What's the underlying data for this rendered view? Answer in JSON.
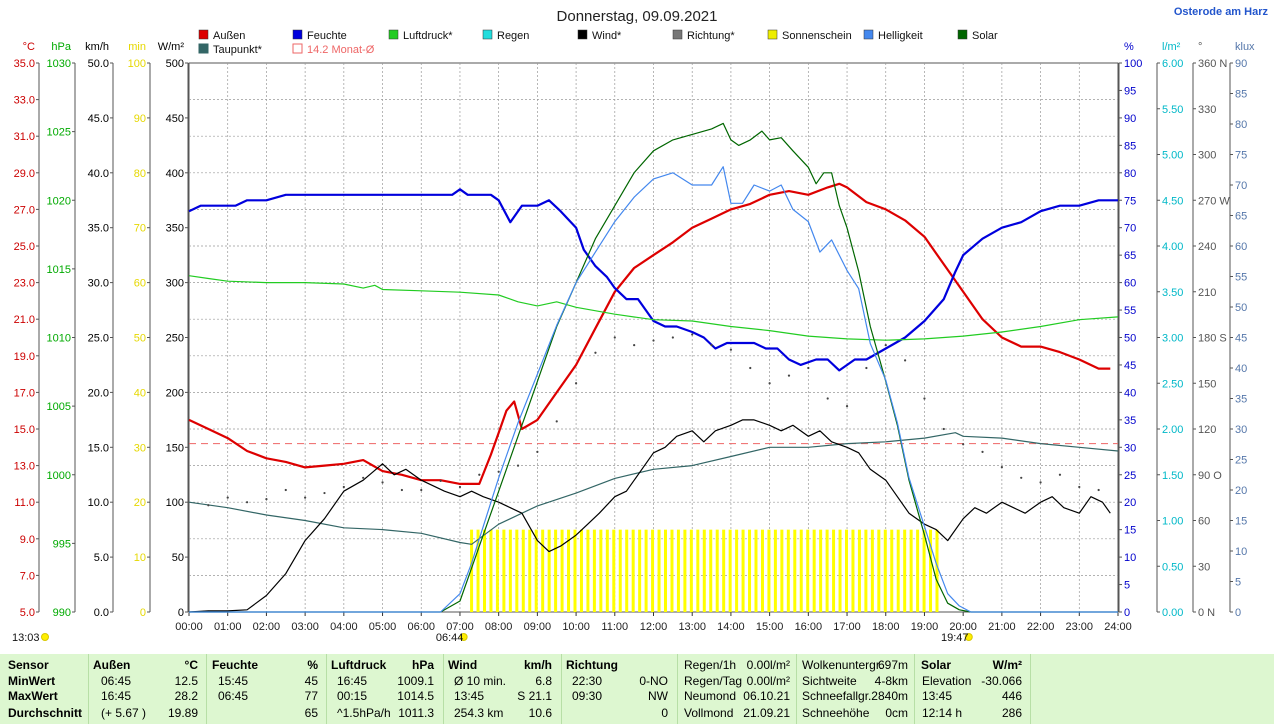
{
  "location": "Osterode am Harz",
  "chart_data": {
    "type": "line",
    "title": "Donnerstag, 09.09.2021",
    "x_ticks": [
      "00:00",
      "01:00",
      "02:00",
      "03:00",
      "04:00",
      "05:00",
      "06:00",
      "07:00",
      "08:00",
      "09:00",
      "10:00",
      "11:00",
      "12:00",
      "13:00",
      "14:00",
      "15:00",
      "16:00",
      "17:00",
      "18:00",
      "19:00",
      "20:00",
      "21:00",
      "22:00",
      "23:00",
      "24:00"
    ],
    "xlim": [
      0,
      24
    ],
    "grid": true,
    "axes": {
      "temp": {
        "unit": "°C",
        "range": [
          5,
          35
        ],
        "ticks": [
          "35.0",
          "33.0",
          "31.0",
          "29.0",
          "27.0",
          "25.0",
          "23.0",
          "21.0",
          "19.0",
          "17.0",
          "15.0",
          "13.0",
          "11.0",
          "9.0",
          "7.0",
          "5.0"
        ],
        "color": "#d00000"
      },
      "pressure": {
        "unit": "hPa",
        "range": [
          990,
          1030
        ],
        "ticks": [
          "1030",
          "1025",
          "1020",
          "1015",
          "1010",
          "1005",
          "1000",
          "995",
          "990"
        ],
        "color": "#00b000"
      },
      "wind": {
        "unit": "km/h",
        "range": [
          0,
          50
        ],
        "ticks": [
          "50.0",
          "45.0",
          "40.0",
          "35.0",
          "30.0",
          "25.0",
          "20.0",
          "15.0",
          "10.0",
          "5.0",
          "0.0"
        ],
        "color": "#000000"
      },
      "sunshine": {
        "unit": "min",
        "range": [
          0,
          100
        ],
        "ticks": [
          "100",
          "90",
          "80",
          "70",
          "60",
          "50",
          "40",
          "30",
          "20",
          "10",
          "0"
        ],
        "color": "#e6d800"
      },
      "solar": {
        "unit": "W/m²",
        "range": [
          0,
          500
        ],
        "ticks": [
          "500",
          "450",
          "400",
          "350",
          "300",
          "250",
          "200",
          "150",
          "100",
          "50",
          "0"
        ],
        "color": "#000000"
      },
      "humidity": {
        "unit": "%",
        "range": [
          0,
          100
        ],
        "ticks": [
          "100",
          "95",
          "90",
          "85",
          "80",
          "75",
          "70",
          "65",
          "60",
          "55",
          "50",
          "45",
          "40",
          "35",
          "30",
          "25",
          "20",
          "15",
          "10",
          "5",
          "0"
        ],
        "color": "#0000cc"
      },
      "rain": {
        "unit": "l/m²",
        "range": [
          0,
          6
        ],
        "ticks": [
          "6.00",
          "5.50",
          "5.00",
          "4.50",
          "4.00",
          "3.50",
          "3.00",
          "2.50",
          "2.00",
          "1.50",
          "1.00",
          "0.50",
          "0.00"
        ],
        "color": "#00b8c8"
      },
      "direction": {
        "unit": "°",
        "range": [
          0,
          360
        ],
        "ticks": [
          "360 N",
          "330",
          "300",
          "270 W",
          "240",
          "210",
          "180 S",
          "150",
          "120",
          "90 O",
          "60",
          "30",
          "0 N"
        ],
        "color": "#555555"
      },
      "lux": {
        "unit": "klux",
        "range": [
          0,
          90
        ],
        "ticks": [
          "90",
          "85",
          "80",
          "75",
          "70",
          "65",
          "60",
          "55",
          "50",
          "45",
          "40",
          "35",
          "30",
          "25",
          "20",
          "15",
          "10",
          "5",
          "0"
        ],
        "color": "#5577aa"
      }
    },
    "legend": [
      {
        "name": "Außen",
        "color": "#dd0000"
      },
      {
        "name": "Feuchte",
        "color": "#0000dd"
      },
      {
        "name": "Luftdruck*",
        "color": "#22cc22"
      },
      {
        "name": "Regen",
        "color": "#22dddd"
      },
      {
        "name": "Wind*",
        "color": "#000000"
      },
      {
        "name": "Richtung*",
        "color": "#777777"
      },
      {
        "name": "Sonnenschein",
        "color": "#eeee00"
      },
      {
        "name": "Helligkeit",
        "color": "#4488ee"
      },
      {
        "name": "Solar",
        "color": "#006600"
      },
      {
        "name": "Taupunkt*",
        "color": "#336666"
      },
      {
        "name": "14.2 Monat-Ø",
        "color": "#ee6666"
      }
    ],
    "month_avg_temp": 14.2,
    "sunrise": "06:44",
    "sunset": "19:47",
    "day_length": "13:03",
    "series": [
      {
        "name": "Außen",
        "axis": "temp",
        "color": "#dd0000",
        "width": 2.2,
        "x": [
          0,
          0.5,
          1,
          1.5,
          2,
          2.5,
          3,
          3.5,
          4,
          4.5,
          5,
          5.5,
          6,
          6.5,
          7,
          7.5,
          7.8,
          8,
          8.2,
          8.4,
          8.6,
          9,
          9.5,
          10,
          10.5,
          11,
          11.5,
          12,
          12.5,
          13,
          13.5,
          14,
          14.5,
          15,
          15.5,
          16,
          16.5,
          16.8,
          17,
          17.5,
          18,
          18.5,
          19,
          19.5,
          20,
          20.5,
          21,
          21.5,
          22,
          22.5,
          23,
          23.5,
          23.8
        ],
        "y": [
          15.5,
          15.0,
          14.5,
          13.8,
          13.4,
          13.2,
          12.9,
          13.0,
          13.1,
          13.3,
          12.7,
          12.5,
          12.2,
          12.2,
          12.0,
          12.0,
          13.6,
          14.8,
          16.0,
          16.5,
          15.0,
          15.5,
          17.0,
          18.5,
          20.5,
          22.5,
          23.8,
          24.5,
          25.2,
          26.0,
          26.5,
          27.0,
          27.3,
          27.8,
          28.0,
          27.8,
          28.2,
          28.4,
          28.2,
          27.4,
          27.0,
          26.4,
          25.5,
          24.0,
          22.5,
          21.0,
          20.0,
          19.5,
          19.5,
          19.2,
          18.8,
          18.3,
          18.3
        ]
      },
      {
        "name": "Taupunkt*",
        "axis": "temp",
        "color": "#336666",
        "width": 1.2,
        "x": [
          0,
          1,
          2,
          3,
          4,
          5,
          6,
          7,
          7.3,
          8,
          9,
          10,
          11,
          12,
          13,
          14,
          15,
          16,
          17,
          18,
          19,
          19.8,
          20,
          21,
          22,
          23,
          24
        ],
        "y": [
          11.0,
          10.7,
          10.3,
          10.0,
          9.6,
          9.5,
          9.3,
          8.8,
          8.7,
          9.8,
          10.8,
          11.5,
          12.3,
          12.8,
          13.0,
          13.5,
          14.0,
          14.0,
          14.2,
          14.3,
          14.5,
          14.8,
          14.6,
          14.5,
          14.2,
          14.0,
          13.8
        ]
      },
      {
        "name": "Feuchte",
        "axis": "humidity",
        "color": "#0000dd",
        "width": 2.2,
        "x": [
          0,
          0.3,
          1,
          1.2,
          1.5,
          2,
          2.5,
          3,
          4,
          5,
          6,
          6.5,
          6.8,
          7.0,
          7.2,
          7.5,
          7.8,
          8,
          8.3,
          8.6,
          9,
          9.3,
          9.6,
          10,
          10.2,
          10.5,
          10.8,
          11,
          11.3,
          11.6,
          12,
          12.3,
          12.6,
          13,
          13.3,
          13.6,
          13.9,
          14.2,
          14.6,
          14.9,
          15.2,
          15.5,
          15.8,
          16.2,
          16.5,
          16.8,
          17.2,
          17.5,
          18,
          18.5,
          19,
          19.5,
          19.8,
          20,
          20.5,
          21,
          21.5,
          22,
          22.5,
          23,
          23.5,
          24
        ],
        "y": [
          73,
          74,
          74,
          74,
          75,
          75,
          76,
          76,
          76,
          76,
          76,
          76,
          76,
          77,
          76,
          76,
          76,
          75,
          71,
          74,
          74,
          75,
          73,
          70,
          66,
          63,
          61,
          59,
          57,
          57,
          53,
          52,
          52,
          51,
          50,
          48,
          49,
          49,
          49,
          48,
          48,
          46,
          45,
          46,
          46,
          44,
          46,
          46,
          48,
          50,
          53,
          57,
          62,
          65,
          68,
          70,
          71,
          73,
          74,
          74,
          75,
          75
        ]
      },
      {
        "name": "Luftdruck*",
        "axis": "pressure",
        "color": "#22cc22",
        "width": 1.2,
        "x": [
          0,
          0.5,
          1,
          2,
          3,
          4,
          4.5,
          4.8,
          5,
          6,
          7,
          8,
          8.5,
          9,
          9.5,
          10,
          11,
          12,
          13,
          14,
          15,
          16,
          17,
          18,
          19,
          20,
          21,
          22,
          23,
          24
        ],
        "y": [
          1014.5,
          1014.3,
          1014.1,
          1014.0,
          1014.0,
          1013.9,
          1013.6,
          1013.8,
          1013.5,
          1013.4,
          1013.3,
          1013.1,
          1012.6,
          1012.3,
          1012.6,
          1012.2,
          1011.7,
          1011.3,
          1011.2,
          1010.8,
          1010.5,
          1010.1,
          1009.9,
          1009.8,
          1009.9,
          1010.1,
          1010.4,
          1010.8,
          1011.3,
          1011.5
        ]
      },
      {
        "name": "Wind*",
        "axis": "wind",
        "color": "#000000",
        "width": 1.2,
        "x": [
          0,
          0.5,
          1,
          1.5,
          2,
          2.5,
          3,
          3.5,
          4,
          4.5,
          5,
          5.3,
          5.6,
          6,
          6.3,
          6.6,
          7,
          7.3,
          7.6,
          8,
          8.3,
          8.6,
          9,
          9.3,
          9.6,
          10,
          10.3,
          10.6,
          11,
          11.3,
          11.6,
          12,
          12.3,
          12.6,
          13,
          13.3,
          13.6,
          14,
          14.3,
          14.6,
          15,
          15.3,
          15.6,
          16,
          16.3,
          16.6,
          17,
          17.3,
          17.6,
          18,
          18.3,
          18.6,
          19,
          19.3,
          19.6,
          20,
          20.3,
          20.6,
          21,
          21.3,
          21.6,
          22,
          22.3,
          22.6,
          23,
          23.3,
          23.6,
          23.8
        ],
        "y": [
          0,
          0.1,
          0.1,
          0.2,
          1.5,
          3.5,
          6.5,
          8.5,
          11,
          12,
          13.5,
          12.5,
          13.0,
          12.0,
          11.5,
          11.0,
          10.5,
          11.0,
          10.5,
          10.0,
          9.5,
          9.0,
          6.5,
          5.5,
          6.0,
          7.0,
          8.0,
          9.0,
          10.5,
          11.0,
          12.5,
          14.5,
          15.0,
          16.0,
          16.5,
          15.5,
          16.5,
          17.0,
          17.5,
          17.5,
          17.0,
          16.5,
          17.0,
          16.0,
          16.5,
          15.5,
          15.0,
          14.5,
          13.0,
          12.0,
          10.5,
          9.0,
          8.0,
          7.5,
          6.5,
          8.5,
          9.5,
          9.0,
          10.0,
          9.5,
          9.0,
          10.0,
          10.5,
          9.5,
          9.0,
          10.5,
          10.0,
          9.0
        ]
      },
      {
        "name": "Solar",
        "axis": "solar",
        "color": "#006600",
        "width": 1.2,
        "x": [
          0,
          6.5,
          7.0,
          7.3,
          7.6,
          8,
          8.5,
          9,
          9.5,
          10,
          10.5,
          11,
          11.5,
          12,
          12.5,
          13,
          13.5,
          13.8,
          14.0,
          14.2,
          14.5,
          14.8,
          15.0,
          15.3,
          15.6,
          16.0,
          16.2,
          16.4,
          16.6,
          16.8,
          17.0,
          17.3,
          17.6,
          18.0,
          18.3,
          18.6,
          19.0,
          19.3,
          19.6,
          19.9,
          20.2,
          24
        ],
        "y": [
          0,
          0,
          10,
          40,
          70,
          110,
          160,
          210,
          260,
          300,
          340,
          370,
          400,
          420,
          430,
          435,
          440,
          445,
          430,
          425,
          430,
          438,
          430,
          432,
          420,
          405,
          390,
          400,
          400,
          370,
          350,
          310,
          260,
          210,
          170,
          120,
          70,
          30,
          8,
          2,
          0,
          0
        ]
      },
      {
        "name": "Helligkeit",
        "axis": "lux",
        "color": "#4488ee",
        "width": 1.2,
        "x": [
          0,
          6.5,
          7.0,
          7.3,
          7.6,
          8,
          8.5,
          9,
          9.5,
          10,
          10.5,
          11,
          11.5,
          12,
          12.5,
          13,
          13.5,
          13.8,
          14.0,
          14.3,
          14.6,
          15.0,
          15.3,
          15.6,
          16.0,
          16.3,
          16.6,
          17.0,
          17.3,
          17.6,
          18.0,
          18.3,
          18.6,
          19.0,
          19.3,
          19.6,
          19.9,
          20.2,
          24
        ],
        "y": [
          0,
          0,
          3,
          8,
          14,
          22,
          31,
          39,
          47,
          54,
          59,
          64,
          68,
          71,
          72,
          70,
          70,
          73,
          67,
          67,
          70,
          69,
          70,
          66,
          64,
          59,
          61,
          56,
          53,
          44,
          38,
          31,
          22,
          14,
          8,
          3,
          1,
          0,
          0
        ]
      },
      {
        "name": "Richtung*",
        "axis": "direction",
        "type": "scatter",
        "color": "#444444",
        "x": [
          0.5,
          1.0,
          1.5,
          2.0,
          2.5,
          3.0,
          3.5,
          4.0,
          4.5,
          5.0,
          5.5,
          6.0,
          6.5,
          7.0,
          7.5,
          8.0,
          8.5,
          9.0,
          9.5,
          10.0,
          10.5,
          11.0,
          11.5,
          12.0,
          12.5,
          13.0,
          13.5,
          14.0,
          14.5,
          15.0,
          15.5,
          16.0,
          16.5,
          17.0,
          17.5,
          18.0,
          18.5,
          19.0,
          19.5,
          20.0,
          20.5,
          21.0,
          21.5,
          22.0,
          22.5,
          23.0,
          23.5
        ],
        "y": [
          70,
          75,
          72,
          74,
          80,
          75,
          78,
          82,
          88,
          85,
          80,
          80,
          86,
          82,
          90,
          92,
          96,
          105,
          125,
          150,
          170,
          180,
          175,
          178,
          180,
          182,
          175,
          172,
          160,
          150,
          155,
          160,
          140,
          135,
          160,
          175,
          165,
          140,
          120,
          110,
          105,
          95,
          88,
          85,
          90,
          82,
          80
        ]
      }
    ],
    "sunshine_bars": {
      "axis": "sunshine",
      "value": 15,
      "from": 7.3,
      "to": 19.4,
      "step": 0.167,
      "color": "#ffff00"
    }
  },
  "stats": {
    "headers": {
      "sensor": "Sensor",
      "aussen": "Außen",
      "aussen_unit": "°C",
      "feuchte": "Feuchte",
      "feuchte_unit": "%",
      "luftdruck": "Luftdruck",
      "luftdruck_unit": "hPa",
      "wind": "Wind",
      "wind_unit": "km/h",
      "richtung": "Richtung",
      "solar": "Solar",
      "solar_unit": "W/m²"
    },
    "rows": [
      {
        "label": "MinWert",
        "aussen_t": "06:45",
        "aussen_v": "12.5",
        "feuchte_t": "15:45",
        "feuchte_v": "45",
        "luft_t": "16:45",
        "luft_v": "1009.1",
        "wind_t": "Ø 10 min.",
        "wind_v": "6.8",
        "richt_t": "22:30",
        "richt_v": "0-NO"
      },
      {
        "label": "MaxWert",
        "aussen_t": "16:45",
        "aussen_v": "28.2",
        "feuchte_t": "06:45",
        "feuchte_v": "77",
        "luft_t": "00:15",
        "luft_v": "1014.5",
        "wind_t": "13:45",
        "wind_v": "S 21.1",
        "richt_t": "09:30",
        "richt_v": "NW"
      },
      {
        "label": "Durchschnitt",
        "aussen_t": "(+ 5.67 )",
        "aussen_v": "19.89",
        "feuchte_t": "",
        "feuchte_v": "65",
        "luft_t": "^1.5hPa/h",
        "luft_v": "1011.3",
        "wind_t": "254.3 km",
        "wind_v": "10.6",
        "richt_t": "",
        "richt_v": "0"
      }
    ],
    "rain": [
      {
        "label": "Regen/1h",
        "value": "0.00l/m²"
      },
      {
        "label": "Regen/Tag",
        "value": "0.00l/m²"
      },
      {
        "label": "Neumond",
        "value": "06.10.21"
      },
      {
        "label": "Vollmond",
        "value": "21.09.21"
      }
    ],
    "misc": [
      {
        "label": "Wolkenuntergr.",
        "value": "697m"
      },
      {
        "label": "Sichtweite",
        "value": "4-8km"
      },
      {
        "label": "Schneefallgr.",
        "value": "2840m"
      },
      {
        "label": "Schneehöhe",
        "value": "0cm"
      }
    ],
    "solar": [
      {
        "label": "Elevation",
        "value": "-30.066"
      },
      {
        "label": "13:45",
        "value": "446"
      },
      {
        "label": "12:14 h",
        "value": "286"
      }
    ]
  }
}
